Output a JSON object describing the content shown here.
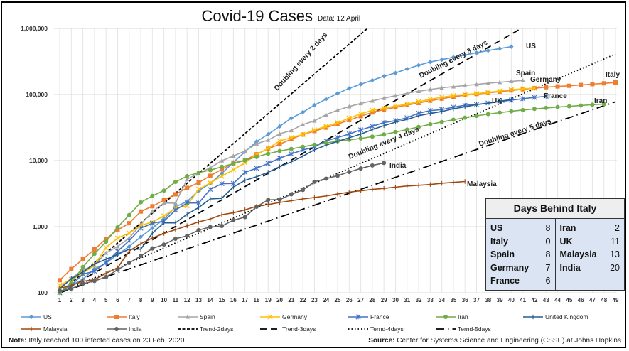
{
  "chart_data": {
    "type": "line",
    "title": "Covid-19 Cases",
    "subtitle": "Data: 12 April",
    "xlabel": "",
    "ylabel": "",
    "yscale": "log",
    "ylim": [
      100,
      1000000
    ],
    "xlim": [
      1,
      49
    ],
    "grid": true,
    "legend_position": "bottom",
    "y_ticks": [
      {
        "value": 100,
        "label": "100"
      },
      {
        "value": 1000,
        "label": "1,000"
      },
      {
        "value": 10000,
        "label": "10,000"
      },
      {
        "value": 100000,
        "label": "100,000"
      },
      {
        "value": 1000000,
        "label": "1,000,000"
      }
    ],
    "x_ticks": [
      "1",
      "2",
      "3",
      "4",
      "5",
      "6",
      "7",
      "8",
      "9",
      "10",
      "11",
      "12",
      "13",
      "14",
      "15",
      "16",
      "17",
      "18",
      "19",
      "20",
      "21",
      "22",
      "23",
      "24",
      "25",
      "26",
      "27",
      "28",
      "29",
      "30",
      "31",
      "32",
      "33",
      "34",
      "35",
      "36",
      "37",
      "38",
      "39",
      "40",
      "41",
      "42",
      "43",
      "44",
      "45",
      "46",
      "47",
      "48",
      "49"
    ],
    "series": [
      {
        "name": "US",
        "color": "#5b9bd5",
        "marker": "diamond",
        "label": "US",
        "values": [
          100,
          130,
          160,
          230,
          280,
          380,
          500,
          700,
          950,
          1300,
          2000,
          2400,
          3500,
          4500,
          6400,
          9400,
          13600,
          19400,
          25000,
          33000,
          43800,
          54000,
          69000,
          85000,
          104000,
          124000,
          143000,
          164000,
          189000,
          212000,
          244000,
          278000,
          311000,
          337000,
          366000,
          396000,
          429000,
          462000,
          496000,
          530000
        ]
      },
      {
        "name": "Italy",
        "color": "#ed7d31",
        "marker": "square",
        "label": "Italy",
        "values": [
          155,
          229,
          322,
          453,
          655,
          888,
          1128,
          1694,
          2036,
          2502,
          3089,
          3858,
          4636,
          5883,
          7375,
          9172,
          10149,
          12462,
          15113,
          17660,
          21157,
          24747,
          27980,
          31506,
          35713,
          41035,
          47021,
          53578,
          59138,
          63927,
          69176,
          74386,
          80589,
          86498,
          92472,
          97689,
          101739,
          105792,
          110574,
          115242,
          119827,
          124632,
          128948,
          132547,
          135586,
          139422,
          143626,
          147577,
          152271
        ]
      },
      {
        "name": "Spain",
        "color": "#a5a5a5",
        "marker": "triangle",
        "label": "Spain",
        "values": [
          120,
          165,
          222,
          259,
          400,
          500,
          673,
          1073,
          1695,
          2277,
          2277,
          5232,
          6391,
          7798,
          9942,
          11748,
          13910,
          17963,
          20410,
          25374,
          28603,
          35136,
          39885,
          49515,
          57786,
          65719,
          73235,
          80110,
          87956,
          95923,
          104118,
          112065,
          119199,
          126168,
          131646,
          136675,
          141942,
          148220,
          153222,
          158273,
          163027
        ]
      },
      {
        "name": "Germany",
        "color": "#ffc000",
        "marker": "x",
        "label": "Germany",
        "values": [
          130,
          159,
          196,
          262,
          482,
          670,
          799,
          1040,
          1176,
          1457,
          1908,
          2078,
          3675,
          4585,
          5795,
          7272,
          9257,
          12327,
          15320,
          19848,
          22213,
          24873,
          29056,
          32986,
          37323,
          43938,
          50871,
          57695,
          62095,
          66885,
          71808,
          77872,
          84794,
          91159,
          96092,
          100123,
          103374,
          107663,
          113296,
          118181,
          122171,
          124908
        ]
      },
      {
        "name": "France",
        "color": "#4472c4",
        "marker": "star",
        "label": "France",
        "values": [
          100,
          130,
          191,
          212,
          285,
          423,
          613,
          949,
          1126,
          1209,
          1784,
          2281,
          2281,
          3661,
          4469,
          4499,
          6633,
          7652,
          9043,
          10871,
          12612,
          14459,
          16018,
          19856,
          22304,
          25233,
          29155,
          32964,
          37575,
          40174,
          44550,
          52128,
          56989,
          59105,
          64338,
          68605,
          70478,
          74390,
          78167,
          82048,
          86334,
          90276,
          93790
        ]
      },
      {
        "name": "Iran",
        "color": "#70ad47",
        "marker": "circle",
        "label": "Iran",
        "values": [
          100,
          140,
          245,
          388,
          593,
          978,
          1501,
          2336,
          2922,
          3513,
          4747,
          5823,
          6566,
          7161,
          8042,
          9000,
          10075,
          11364,
          12729,
          13938,
          14991,
          16169,
          17361,
          18407,
          19644,
          20610,
          21638,
          23049,
          24811,
          27017,
          29406,
          32332,
          35408,
          38309,
          41495,
          44605,
          47593,
          50468,
          53183,
          55743,
          58226,
          60500,
          62589,
          64586,
          66220,
          68192,
          70029,
          71686
        ]
      },
      {
        "name": "United Kingdom",
        "color": "#255e91",
        "marker": "plus",
        "label": "UK",
        "values": [
          115,
          163,
          206,
          273,
          321,
          382,
          456,
          456,
          798,
          1140,
          1140,
          1543,
          1950,
          2626,
          2689,
          3983,
          5018,
          5683,
          6650,
          8077,
          9529,
          11658,
          14543,
          17089,
          19522,
          22141,
          25150,
          29474,
          33718,
          38168,
          41903,
          47806,
          51608,
          55242,
          60733,
          65077,
          70272,
          73758,
          78991,
          84279
        ]
      },
      {
        "name": "Malaysia",
        "color": "#9e480e",
        "marker": "plus",
        "label": "Malaysia",
        "values": [
          117,
          129,
          149,
          158,
          197,
          238,
          428,
          553,
          673,
          790,
          900,
          1030,
          1183,
          1306,
          1518,
          1624,
          1796,
          2031,
          2161,
          2320,
          2470,
          2626,
          2766,
          2908,
          3116,
          3333,
          3483,
          3662,
          3793,
          3963,
          4119,
          4228,
          4346,
          4530,
          4683,
          4817
        ]
      },
      {
        "name": "India",
        "color": "#636363",
        "marker": "circle",
        "label": "India",
        "values": [
          107,
          114,
          137,
          151,
          173,
          223,
          283,
          360,
          468,
          536,
          657,
          727,
          887,
          987,
          1024,
          1251,
          1397,
          1998,
          2543,
          2567,
          3082,
          3588,
          4778,
          5311,
          5916,
          6725,
          7598,
          8446,
          9205
        ]
      },
      {
        "name": "Trend-2days",
        "color": "#000000",
        "style": "short-dash",
        "label": "Doubling every 2 days",
        "start": 100,
        "doubling_days": 2
      },
      {
        "name": "Trend-3days",
        "color": "#000000",
        "style": "long-dash",
        "label": "Doubling every 3 days",
        "start": 100,
        "doubling_days": 3
      },
      {
        "name": "Ternd-4days",
        "color": "#000000",
        "style": "dot",
        "label": "Doubling every 4 days",
        "start": 100,
        "doubling_days": 4
      },
      {
        "name": "Ternd-5days",
        "color": "#000000",
        "style": "dash-dot",
        "label": "Doubling every 5 days",
        "start": 100,
        "doubling_days": 5
      }
    ],
    "legend": [
      [
        "US",
        "Italy",
        "Spain",
        "Germany",
        "France",
        "Iran",
        "United Kingdom"
      ],
      [
        "Malaysia",
        "India",
        "Trend-2days",
        "Trend-3days",
        "Ternd-4days",
        "Ternd-5days"
      ]
    ]
  },
  "days_behind": {
    "title": "Days Behind Italy",
    "left": [
      {
        "country": "US",
        "days": "8"
      },
      {
        "country": "Italy",
        "days": "0"
      },
      {
        "country": "Spain",
        "days": "8"
      },
      {
        "country": "Germany",
        "days": "7"
      },
      {
        "country": "France",
        "days": "6"
      }
    ],
    "right": [
      {
        "country": "Iran",
        "days": "2"
      },
      {
        "country": "UK",
        "days": "11"
      },
      {
        "country": "Malaysia",
        "days": "13"
      },
      {
        "country": "India",
        "days": "20"
      }
    ]
  },
  "footer": {
    "note_label": "Note:",
    "note_text": " Italy reached 100 infected cases on 23 Feb. 2020",
    "source_label": "Source:",
    "source_text": " Center for Systems Science and Engineering (CSSE) at Johns Hopkins"
  }
}
